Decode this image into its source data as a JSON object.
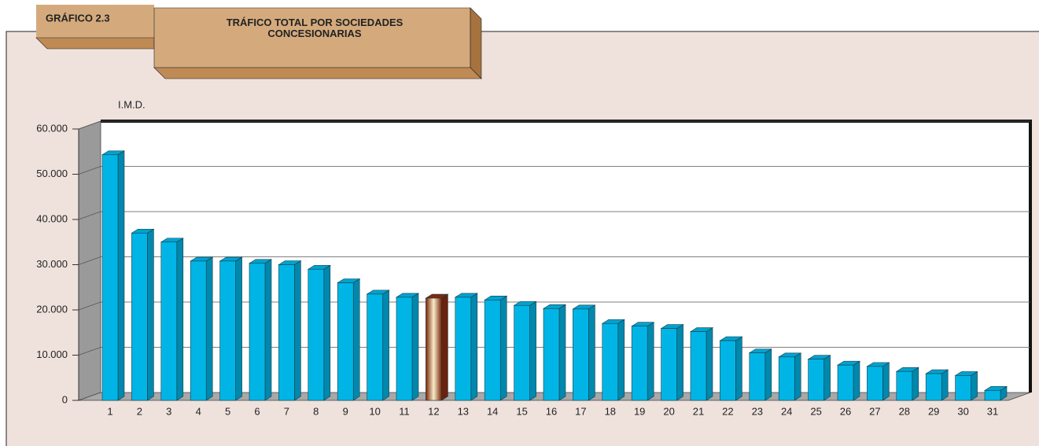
{
  "chart_data": {
    "type": "bar3d",
    "header": "GRÁFICO 2.3",
    "title": "TRÁFICO TOTAL POR SOCIEDADES CONCESIONARIAS",
    "y_label": "I.M.D.",
    "categories": [
      "1",
      "2",
      "3",
      "4",
      "5",
      "6",
      "7",
      "8",
      "9",
      "10",
      "11",
      "12",
      "13",
      "14",
      "15",
      "16",
      "17",
      "18",
      "19",
      "20",
      "21",
      "22",
      "23",
      "24",
      "25",
      "26",
      "27",
      "28",
      "29",
      "30",
      "31"
    ],
    "values": [
      54300,
      37000,
      35000,
      30800,
      30800,
      30300,
      30000,
      29000,
      26000,
      23500,
      22800,
      22600,
      22800,
      22200,
      21000,
      20300,
      20200,
      17000,
      16400,
      15900,
      15200,
      13200,
      10500,
      9600,
      9100,
      7800,
      7500,
      6400,
      5900,
      5500,
      2200
    ],
    "color": "#00b5e6",
    "colors": [
      "#00b5e6",
      "#00b5e6",
      "#00b5e6",
      "#00b5e6",
      "#00b5e6",
      "#00b5e6",
      "#00b5e6",
      "#00b5e6",
      "#00b5e6",
      "#00b5e6",
      "#00b5e6",
      "#8e2c10",
      "#00b5e6",
      "#00b5e6",
      "#00b5e6",
      "#00b5e6",
      "#00b5e6",
      "#00b5e6",
      "#00b5e6",
      "#00b5e6",
      "#00b5e6",
      "#00b5e6",
      "#00b5e6",
      "#00b5e6",
      "#00b5e6",
      "#00b5e6",
      "#00b5e6",
      "#00b5e6",
      "#00b5e6",
      "#00b5e6",
      "#00b5e6"
    ],
    "ylim": [
      0,
      60000
    ],
    "yticks": [
      0,
      {
        "value": 10000,
        "label": "10.000"
      },
      {
        "value": 20000,
        "label": "20.000"
      },
      {
        "value": 30000,
        "label": "30.000"
      },
      {
        "value": 40000,
        "label": "40.000"
      },
      {
        "value": 50000,
        "label": "50.000"
      },
      {
        "value": 60000,
        "label": "60.000"
      }
    ],
    "grid": true
  }
}
